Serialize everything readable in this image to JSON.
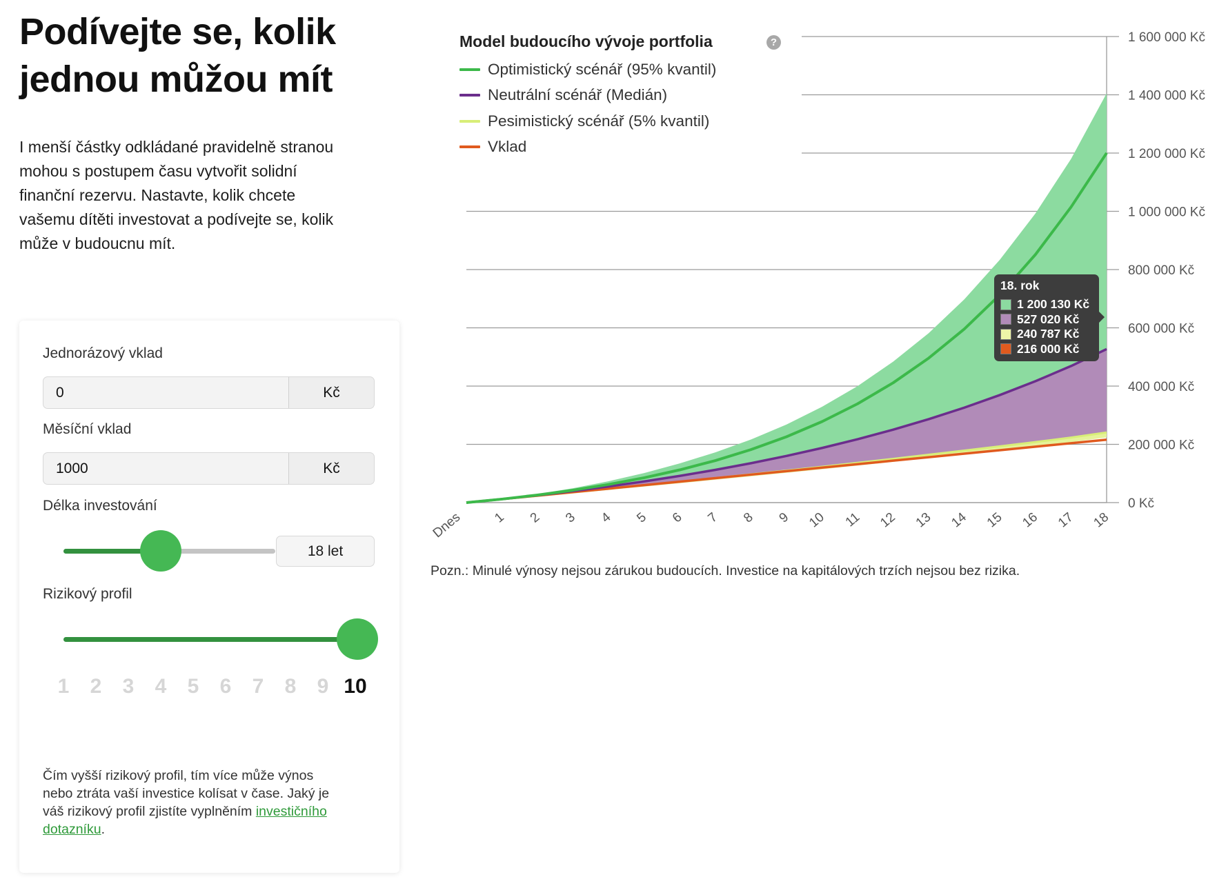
{
  "heading": {
    "lines": [
      "Podívejte se, kolik",
      "jednou můžou mít"
    ]
  },
  "intro": {
    "lines": [
      "I menší částky odkládané pravidelně stranou",
      "mohou s postupem času vytvořit solidní",
      "finanční rezervu. Nastavte, kolik chcete",
      "vašemu dítěti investovat a podívejte se, kolik",
      "může v budoucnu mít."
    ]
  },
  "form": {
    "one_time": {
      "label": "Jednorázový vklad",
      "value": "0",
      "unit": "Kč"
    },
    "monthly": {
      "label": "Měsíční vklad",
      "value": "1000",
      "unit": "Kč"
    },
    "duration": {
      "label": "Délka investování",
      "value_label": "18 let",
      "value": 18,
      "fraction": 0.46
    },
    "risk": {
      "label": "Rizikový profil",
      "value": 10,
      "levels": [
        "1",
        "2",
        "3",
        "4",
        "5",
        "6",
        "7",
        "8",
        "9",
        "10"
      ]
    },
    "note": {
      "line1": "Čím vyšší rizikový profil, tím více může výnos",
      "line2": "nebo ztráta vaší investice kolísat v čase. Jaký je",
      "line3_pre": "váš rizikový profil zjistíte vyplněním ",
      "link_part1": "investičního",
      "link_part2": "dotazníku",
      "end": "."
    }
  },
  "chart_data": {
    "type": "area",
    "title": "Model budoucího vývoje portfolia",
    "help_icon": "question-circle-icon",
    "x": [
      "Dnes",
      "1",
      "2",
      "3",
      "4",
      "5",
      "6",
      "7",
      "8",
      "9",
      "10",
      "11",
      "12",
      "13",
      "14",
      "15",
      "16",
      "17",
      "18"
    ],
    "ylim": [
      0,
      1600000
    ],
    "yticks": [
      {
        "value": 0,
        "label": "0 Kč"
      },
      {
        "value": 200000,
        "label": "200 000 Kč"
      },
      {
        "value": 400000,
        "label": "400 000 Kč"
      },
      {
        "value": 600000,
        "label": "600 000 Kč"
      },
      {
        "value": 800000,
        "label": "800 000 Kč"
      },
      {
        "value": 1000000,
        "label": "1 000 000 Kč"
      },
      {
        "value": 1200000,
        "label": "1 200 000 Kč"
      },
      {
        "value": 1400000,
        "label": "1 400 000 Kč"
      },
      {
        "value": 1600000,
        "label": "1 600 000 Kč"
      }
    ],
    "grid": true,
    "legend_position": "top-left",
    "series": [
      {
        "name": "Optimistický scénář (95% kvantil)",
        "color": "#3cb94a",
        "fill": "#8cdba0",
        "values": [
          0,
          12000,
          26100,
          42700,
          62300,
          85300,
          112400,
          144300,
          181900,
          226100,
          278100,
          339300,
          411400,
          496200,
          596000,
          713500,
          851800,
          1014600,
          1200130
        ],
        "band_upper": [
          0,
          13000,
          29500,
          49500,
          73500,
          101500,
          134500,
          172500,
          216500,
          268000,
          329000,
          400000,
          484000,
          582000,
          698000,
          834000,
          993000,
          1180000,
          1405000
        ]
      },
      {
        "name": "Neutrální scénář (Medián)",
        "color": "#6b2e8c",
        "fill": "#b18bb8",
        "values": [
          0,
          12000,
          25150,
          39560,
          55360,
          72680,
          91650,
          112450,
          135240,
          160230,
          187610,
          217610,
          250510,
          286560,
          326080,
          369380,
          416840,
          468850,
          527020
        ]
      },
      {
        "name": "Pesimistický scénář (5% kvantil)",
        "color": "#d8ee78",
        "fill": "#e6f29a",
        "values": [
          0,
          11500,
          23200,
          35000,
          47000,
          59200,
          71600,
          84200,
          97000,
          110000,
          123200,
          136700,
          150400,
          164400,
          178600,
          193200,
          208000,
          223300,
          240787
        ]
      },
      {
        "name": "Vklad",
        "color": "#e05a1e",
        "fill": "#e05a1e",
        "values": [
          0,
          12000,
          24000,
          36000,
          48000,
          60000,
          72000,
          84000,
          96000,
          108000,
          120000,
          132000,
          144000,
          156000,
          168000,
          180000,
          192000,
          204000,
          216000
        ]
      }
    ],
    "tooltip": {
      "title": "18. rok",
      "rows": [
        "1 200 130 Kč",
        "527 020 Kč",
        "240 787 Kč",
        "216 000 Kč"
      ]
    }
  },
  "disclaimer": "Pozn.: Minulé výnosy nejsou zárukou budoucích. Investice na kapitálových trzích nejsou bez rizika."
}
